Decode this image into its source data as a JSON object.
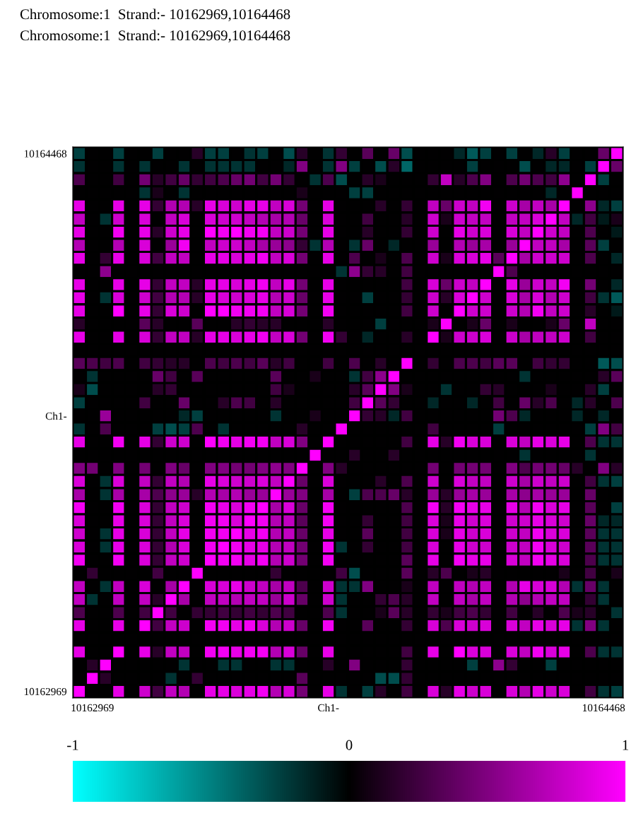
{
  "chart_data": {
    "type": "heatmap",
    "title": "Chromosome:1  Strand:- 10162969,10164468",
    "subtitle": "Chromosome:1  Strand:- 10162969,10164468",
    "categories": [
      null,
      "10162969",
      null,
      null,
      null,
      null,
      null,
      null,
      null,
      null,
      null,
      null,
      null,
      null,
      null,
      null,
      null,
      null,
      null,
      "Ch1-",
      null,
      null,
      null,
      null,
      null,
      null,
      null,
      null,
      null,
      null,
      null,
      null,
      null,
      null,
      null,
      null,
      null,
      null,
      null,
      null,
      "10164468",
      null
    ],
    "y_categories": [
      "10164468",
      null,
      null,
      null,
      null,
      null,
      null,
      null,
      null,
      null,
      null,
      null,
      null,
      null,
      null,
      null,
      null,
      null,
      null,
      null,
      "Ch1-",
      null,
      null,
      null,
      null,
      null,
      null,
      null,
      null,
      null,
      null,
      null,
      null,
      null,
      null,
      null,
      null,
      null,
      null,
      null,
      null,
      "10162969"
    ],
    "cells": [
      [
        -0.25,
        0,
        0,
        -0.25,
        0,
        0,
        -0.25,
        0,
        0,
        0.15,
        -0.25,
        -0.25,
        0,
        -0.2,
        -0.25,
        0,
        -0.3,
        0.15,
        0,
        -0.2,
        0.2,
        0,
        0.35,
        0,
        0.4,
        -0.3,
        0,
        0,
        0,
        -0.15,
        -0.35,
        -0.25,
        0,
        -0.25,
        0,
        -0.15,
        0.15,
        -0.25,
        0,
        0,
        0.4,
        1
      ],
      [
        -0.2,
        0,
        0,
        -0.2,
        0,
        -0.2,
        0,
        0,
        -0.2,
        0,
        -0.2,
        -0.2,
        -0.2,
        -0.2,
        0,
        0,
        -0.15,
        0.5,
        0,
        -0.2,
        0.5,
        -0.25,
        0,
        -0.3,
        0.15,
        -0.4,
        0,
        0,
        0,
        0,
        -0.25,
        0,
        0,
        0,
        -0.3,
        0,
        -0.15,
        -0.15,
        0,
        -0.25,
        1,
        0.4
      ],
      [
        0.3,
        0,
        0,
        0.25,
        0,
        0.45,
        0.15,
        0.25,
        0.4,
        0.2,
        0.25,
        0.3,
        0.4,
        0.45,
        0.25,
        0.45,
        0.2,
        0,
        -0.2,
        0.3,
        -0.3,
        0,
        0.15,
        0.1,
        0,
        0,
        0,
        0.2,
        0.75,
        0.15,
        0.3,
        0.5,
        0,
        0.3,
        0.45,
        0.3,
        0.25,
        0.55,
        0,
        1,
        -0.25,
        0
      ],
      [
        0,
        0,
        0,
        0,
        0,
        -0.2,
        0.1,
        0,
        -0.2,
        0,
        0,
        0,
        0,
        0,
        0,
        0,
        0,
        0.1,
        0,
        0,
        0,
        -0.25,
        -0.25,
        0,
        0,
        0,
        0,
        0,
        0,
        0,
        0,
        0,
        0,
        0,
        0,
        0,
        -0.15,
        0,
        1,
        0,
        0,
        0
      ],
      [
        0.9,
        0,
        0,
        0.9,
        0,
        0.9,
        0.2,
        0.7,
        0.7,
        0.15,
        0.9,
        0.85,
        0.8,
        0.9,
        0.9,
        0.75,
        0.85,
        0.45,
        0,
        0.9,
        0,
        0,
        0,
        0.15,
        0,
        0.2,
        0,
        0.75,
        0.4,
        0.8,
        0.75,
        0.95,
        0,
        0.8,
        0.65,
        0.75,
        0.65,
        1,
        0,
        0.55,
        -0.15,
        -0.25
      ],
      [
        0.75,
        0,
        -0.2,
        0.8,
        0,
        0.85,
        0,
        0.75,
        0.85,
        0,
        0.85,
        0.8,
        0.8,
        0.75,
        0.7,
        0.65,
        0.7,
        0.4,
        0,
        0.85,
        0,
        0,
        0.25,
        0,
        0,
        0.15,
        0,
        0.8,
        0.1,
        0.8,
        0.75,
        0.75,
        0,
        0.75,
        0.75,
        0.85,
        1,
        0.75,
        -0.15,
        0.25,
        -0.1,
        0.1
      ],
      [
        0.9,
        0,
        0,
        0.95,
        0,
        0.9,
        0.15,
        0.8,
        0.9,
        0,
        1,
        0.95,
        1,
        0.95,
        0.95,
        0.75,
        0.8,
        0.45,
        0,
        0.9,
        0,
        0,
        0.15,
        0,
        0,
        0.2,
        0,
        0.8,
        0,
        0.9,
        0.8,
        0.85,
        0,
        0.85,
        0.75,
        1,
        0.8,
        0.75,
        0,
        0.3,
        0,
        -0.1
      ],
      [
        0.7,
        0,
        0,
        0.7,
        0,
        0.85,
        0,
        0.6,
        0.95,
        0,
        0.75,
        0.8,
        0.8,
        0.75,
        0.65,
        0.6,
        0.55,
        0.2,
        -0.2,
        0.7,
        0,
        -0.2,
        0.4,
        0,
        -0.15,
        0,
        0,
        0.6,
        0,
        0.7,
        0.6,
        0.65,
        0,
        0.6,
        1,
        0.75,
        0.75,
        0.65,
        0,
        0.35,
        -0.25,
        0
      ],
      [
        0.9,
        0,
        0.2,
        0.9,
        0,
        0.85,
        0.25,
        0.75,
        0.75,
        0,
        0.9,
        0.9,
        0.85,
        0.9,
        0.95,
        0.75,
        0.85,
        0.45,
        0,
        0.9,
        0,
        0.3,
        0,
        0.1,
        0,
        0.3,
        0,
        0.8,
        0.1,
        0.85,
        0.85,
        0.9,
        0.35,
        1,
        0.65,
        0.8,
        0.8,
        0.8,
        0,
        0.3,
        0,
        -0.15
      ],
      [
        0,
        0,
        0.55,
        0,
        0,
        0,
        0,
        0,
        0,
        0,
        0,
        0,
        0,
        0,
        0,
        0,
        0,
        0,
        0,
        0,
        -0.2,
        0.55,
        0.2,
        0.15,
        0,
        0.25,
        0,
        0,
        0,
        0,
        0,
        0,
        1,
        0.3,
        0,
        0,
        0,
        0,
        0,
        0,
        0,
        0
      ],
      [
        0.9,
        0,
        0,
        0.9,
        0,
        0.9,
        0.2,
        0.75,
        0.75,
        0.15,
        0.9,
        0.9,
        0.85,
        0.9,
        0.95,
        0.75,
        0.9,
        0.45,
        0,
        0.9,
        0,
        0,
        0,
        0,
        0,
        0.25,
        0,
        0.85,
        0.4,
        0.8,
        0.75,
        1,
        0,
        0.9,
        0.6,
        0.8,
        0.75,
        0.95,
        0,
        0.45,
        0,
        -0.15
      ],
      [
        0.9,
        0,
        -0.2,
        0.85,
        0,
        0.8,
        0.25,
        0.7,
        0.7,
        0.15,
        0.9,
        0.85,
        0.8,
        0.85,
        0.9,
        0.7,
        0.8,
        0.4,
        0,
        0.9,
        0,
        0,
        -0.25,
        0,
        0,
        0.2,
        0,
        0.8,
        0.15,
        0.85,
        1,
        0.8,
        0,
        0.85,
        0.65,
        0.85,
        0.7,
        0.8,
        0,
        0.25,
        -0.2,
        -0.35
      ],
      [
        0.9,
        0,
        0,
        1,
        0,
        0.9,
        0.2,
        0.85,
        0.8,
        0,
        1,
        1,
        0.95,
        0.95,
        0.95,
        0.75,
        0.85,
        0.45,
        0,
        0.95,
        0,
        0,
        0,
        0,
        0,
        0.25,
        0,
        0.8,
        0,
        1,
        0.8,
        0.8,
        0,
        0.8,
        0.7,
        0.95,
        0.75,
        0.8,
        0,
        0.15,
        0,
        -0.1
      ],
      [
        0.15,
        0,
        0,
        0,
        0,
        0.35,
        0.15,
        0,
        0,
        0.35,
        0,
        0,
        0.15,
        0.2,
        0.15,
        0.15,
        0,
        0,
        0,
        0.15,
        0,
        0,
        0,
        -0.25,
        0,
        0,
        0,
        0.1,
        1,
        0,
        0.1,
        0.4,
        0,
        0.1,
        0,
        0,
        0.1,
        0.4,
        0,
        0.75,
        0,
        0
      ],
      [
        0.9,
        0,
        0,
        0.9,
        0,
        0.85,
        0.2,
        0.75,
        0.75,
        0.15,
        0.9,
        0.9,
        0.85,
        0.9,
        0.95,
        0.75,
        0.85,
        0.45,
        0,
        0.95,
        0.2,
        0,
        -0.15,
        0,
        0,
        0.15,
        0,
        1,
        0.1,
        0.8,
        0.8,
        0.85,
        0,
        0.8,
        0.65,
        0.75,
        0.75,
        0.8,
        0,
        0.25,
        0,
        0
      ],
      [
        0,
        0,
        0,
        0,
        0,
        0,
        0,
        0,
        0,
        0,
        0,
        0,
        0,
        0,
        0,
        0,
        0,
        0,
        0,
        0,
        0,
        0,
        0,
        0,
        0,
        0,
        0,
        0,
        0,
        0,
        0,
        0,
        0,
        0,
        0,
        0,
        0,
        0,
        0,
        0,
        0,
        0
      ],
      [
        0.35,
        0.3,
        0.25,
        0.3,
        0,
        0.25,
        0.2,
        0.15,
        0.15,
        0,
        0.3,
        0.25,
        0.3,
        0.25,
        0.35,
        0.15,
        0.25,
        0,
        0,
        0.25,
        0,
        0.3,
        0,
        0.15,
        0,
        1,
        0,
        0.2,
        0,
        0.3,
        0.3,
        0.25,
        0.35,
        0.35,
        0,
        0.25,
        0.2,
        0.2,
        0,
        0,
        -0.35,
        -0.3
      ],
      [
        0,
        -0.2,
        0,
        0,
        0,
        0,
        0.4,
        0.25,
        0,
        0.35,
        0,
        0,
        0,
        0,
        0,
        0.35,
        0,
        0,
        0.1,
        0,
        0,
        -0.2,
        0.25,
        0.55,
        1,
        0,
        0,
        0,
        0,
        0,
        0,
        0,
        0,
        0,
        -0.2,
        0,
        0,
        0,
        0,
        0,
        0.15,
        0.35
      ],
      [
        0.1,
        -0.3,
        0,
        0,
        0,
        0,
        0.15,
        0.2,
        0,
        0,
        0,
        0,
        0,
        0,
        0,
        0.25,
        0.1,
        0,
        0,
        0,
        0,
        0.15,
        0.35,
        1,
        0.5,
        0.1,
        0,
        0,
        -0.2,
        0,
        0,
        0.2,
        0.15,
        0,
        0,
        0,
        0.1,
        0,
        0,
        0.15,
        -0.25,
        0
      ],
      [
        -0.25,
        0,
        0,
        0,
        0,
        0.25,
        0,
        0,
        0.4,
        0,
        0,
        0.15,
        0.3,
        0.25,
        0,
        0.15,
        0,
        0,
        0,
        0,
        0,
        0.25,
        1,
        0.35,
        0.2,
        0,
        0,
        -0.15,
        0,
        0,
        -0.15,
        0,
        0.25,
        0,
        0.4,
        0.15,
        0.3,
        0,
        -0.15,
        0.15,
        0,
        0.3
      ],
      [
        0,
        0,
        0.6,
        0,
        0,
        0,
        0,
        0,
        -0.15,
        -0.25,
        0,
        0,
        0,
        0,
        0,
        -0.2,
        0,
        0,
        0.1,
        0,
        0,
        1,
        0.2,
        0.15,
        -0.15,
        0.25,
        0,
        0,
        0,
        0,
        0,
        0,
        0.45,
        0.3,
        -0.15,
        0,
        0,
        0,
        -0.15,
        0,
        -0.15,
        0
      ],
      [
        -0.2,
        0,
        0.3,
        0,
        0,
        0,
        -0.25,
        -0.3,
        -0.25,
        0.3,
        0,
        -0.2,
        0,
        0,
        0,
        0,
        0,
        0.15,
        0,
        0,
        1,
        0,
        0,
        0,
        0,
        0,
        0,
        0.25,
        0,
        0,
        0,
        0,
        -0.25,
        0,
        0,
        0,
        0,
        0,
        0,
        -0.25,
        0.5,
        0.25
      ],
      [
        0.9,
        0,
        0,
        0.95,
        0,
        0.9,
        0.2,
        0.8,
        0.8,
        0,
        1,
        0.95,
        0.9,
        0.95,
        0.95,
        0.75,
        0.85,
        0.5,
        0,
        1,
        0,
        0,
        0,
        0,
        0,
        0.25,
        0,
        0.9,
        0.15,
        0.95,
        0.85,
        0.85,
        0,
        0.85,
        0.75,
        0.9,
        0.85,
        0.9,
        0,
        0.3,
        -0.2,
        -0.2
      ],
      [
        0,
        0,
        0,
        0,
        0,
        0,
        0,
        0,
        0,
        0,
        0,
        0,
        0,
        0,
        0,
        0,
        0,
        0,
        1,
        0,
        0,
        0.15,
        0,
        0,
        0.15,
        0,
        0,
        0,
        0,
        0,
        0,
        0,
        0,
        0,
        -0.2,
        0,
        0,
        0,
        0,
        -0.2,
        0,
        0
      ],
      [
        0.5,
        0.45,
        0,
        0.5,
        0,
        0.45,
        0,
        0.5,
        0.4,
        0,
        0.5,
        0.5,
        0.45,
        0.45,
        0.5,
        0.55,
        0.5,
        1,
        0,
        0.5,
        0.15,
        0,
        0,
        0,
        0,
        0,
        0,
        0.45,
        0,
        0.45,
        0.45,
        0.45,
        0,
        0.5,
        0.3,
        0.45,
        0.45,
        0.4,
        0.15,
        0,
        0.5,
        0.15
      ],
      [
        0.85,
        0,
        -0.2,
        0.85,
        0,
        0.75,
        0.2,
        0.75,
        0.7,
        0,
        0.9,
        0.85,
        0.8,
        0.8,
        0.85,
        0.75,
        1,
        0.4,
        0,
        0.85,
        0,
        0,
        0,
        0.15,
        0,
        0.3,
        0,
        0.8,
        0,
        0.85,
        0.75,
        0.75,
        0,
        0.8,
        0.65,
        0.8,
        0.75,
        0.8,
        0,
        0.25,
        -0.2,
        -0.25
      ],
      [
        0.65,
        0,
        -0.2,
        0.65,
        0,
        0.65,
        0.3,
        0.55,
        0.6,
        0.15,
        0.7,
        0.65,
        0.7,
        0.6,
        0.6,
        1,
        0.6,
        0.5,
        0,
        0.65,
        0,
        -0.25,
        0.3,
        0.3,
        0.4,
        0.15,
        0,
        0.6,
        0.15,
        0.6,
        0.65,
        0.6,
        0,
        0.65,
        0.55,
        0.65,
        0.6,
        0.6,
        0,
        0.4,
        0,
        0
      ],
      [
        0.95,
        0,
        0,
        0.95,
        0,
        0.85,
        0.2,
        0.75,
        0.8,
        0,
        0.95,
        0.9,
        0.85,
        0.95,
        1,
        0.65,
        0.85,
        0.4,
        0,
        0.95,
        0,
        0,
        0,
        0,
        0,
        0.3,
        0,
        0.95,
        0.15,
        0.95,
        0.9,
        0.9,
        0,
        0.9,
        0.7,
        0.95,
        0.85,
        0.9,
        0,
        0.35,
        0,
        -0.25
      ],
      [
        0.85,
        0,
        0,
        0.9,
        0,
        0.85,
        0.2,
        0.75,
        0.85,
        0,
        0.95,
        0.95,
        0.85,
        1,
        0.95,
        0.7,
        0.75,
        0.35,
        0,
        0.95,
        0,
        0,
        0.2,
        0,
        0,
        0.25,
        0,
        0.85,
        0.1,
        0.9,
        0.8,
        0.85,
        0,
        0.8,
        0.8,
        0.9,
        0.85,
        0.8,
        0,
        0.4,
        -0.15,
        -0.15
      ],
      [
        0.8,
        0,
        -0.2,
        0.9,
        0,
        0.85,
        0.2,
        0.75,
        0.9,
        0,
        0.95,
        0.95,
        1,
        0.9,
        0.95,
        0.7,
        0.75,
        0.4,
        0,
        0.9,
        0,
        0,
        0.35,
        0,
        0,
        0.25,
        0,
        0.85,
        0.1,
        0.9,
        0.8,
        0.85,
        0,
        0.8,
        0.75,
        0.95,
        0.85,
        0.85,
        0,
        0.35,
        -0.2,
        -0.2
      ],
      [
        0.85,
        0,
        -0.2,
        0.9,
        0,
        0.85,
        0.2,
        0.7,
        0.85,
        0,
        0.95,
        1,
        0.95,
        0.9,
        0.9,
        0.7,
        0.75,
        0.45,
        0,
        0.95,
        -0.2,
        0,
        0.2,
        0,
        0,
        0.25,
        0,
        0.85,
        0,
        0.9,
        0.8,
        0.8,
        0,
        0.8,
        0.75,
        0.95,
        0.85,
        0.8,
        0,
        0.35,
        -0.2,
        -0.2
      ],
      [
        0.95,
        0,
        0,
        0.95,
        0,
        0.85,
        0.2,
        0.75,
        0.8,
        0,
        1,
        0.95,
        0.95,
        0.9,
        0.95,
        0.7,
        0.8,
        0.45,
        0,
        0.95,
        0,
        0,
        0,
        0,
        0,
        0.35,
        0,
        0.9,
        0,
        0.95,
        0.9,
        0.9,
        0,
        0.85,
        0.75,
        0.95,
        0.9,
        0.85,
        0,
        0.3,
        -0.2,
        -0.2
      ],
      [
        0,
        0.2,
        0,
        0,
        0,
        0,
        0.25,
        0,
        0,
        1,
        0,
        0,
        0,
        0,
        0,
        0.2,
        0,
        0,
        0,
        0,
        0.25,
        -0.3,
        0,
        0,
        0,
        0.35,
        0,
        0.15,
        0.3,
        0,
        0.1,
        0.15,
        0,
        0,
        0,
        0,
        0,
        0.1,
        0,
        0.25,
        0,
        0.1
      ],
      [
        0.75,
        0,
        -0.2,
        0.75,
        0,
        0.85,
        0,
        0.65,
        1,
        0,
        0.85,
        0.85,
        0.9,
        0.8,
        0.75,
        0.65,
        0.75,
        0.3,
        0,
        0.8,
        -0.2,
        -0.2,
        0.5,
        0,
        0,
        0.1,
        0,
        0.75,
        0,
        0.75,
        0.7,
        0.75,
        0,
        0.7,
        0.9,
        0.85,
        0.85,
        0.7,
        -0.2,
        0.4,
        -0.2,
        0
      ],
      [
        0.75,
        -0.2,
        0,
        0.75,
        0,
        0.75,
        0.15,
        1,
        0.65,
        0,
        0.75,
        0.75,
        0.7,
        0.75,
        0.75,
        0.6,
        0.8,
        0.4,
        0,
        0.8,
        -0.2,
        0,
        0,
        0.2,
        0.3,
        0.15,
        0,
        0.75,
        0,
        0.75,
        0.65,
        0.75,
        0,
        0.7,
        0.55,
        0.7,
        0.75,
        0.75,
        0,
        0.2,
        -0.2,
        0
      ],
      [
        0.3,
        0,
        0,
        0.3,
        0,
        0.25,
        1,
        0.25,
        0,
        0.2,
        0.2,
        0.25,
        0.2,
        0.25,
        0.2,
        0.3,
        0.25,
        0,
        0,
        0.3,
        -0.2,
        0,
        0,
        0.1,
        0.35,
        0.15,
        0,
        0.2,
        0.1,
        0.25,
        0.3,
        0.2,
        0,
        0.25,
        0,
        0.15,
        0,
        0.3,
        0.1,
        0.15,
        0,
        -0.2
      ],
      [
        0.9,
        0,
        0,
        0.9,
        0,
        1,
        0.25,
        0.75,
        0.8,
        0,
        0.95,
        0.95,
        0.9,
        0.95,
        0.85,
        0.7,
        0.8,
        0.4,
        0,
        0.95,
        0,
        0,
        0.35,
        0,
        0,
        0.2,
        0,
        0.85,
        0.3,
        0.85,
        0.8,
        0.85,
        0,
        0.85,
        0.75,
        0.9,
        0.85,
        0.9,
        -0.2,
        0.5,
        -0.2,
        0
      ],
      [
        0,
        0,
        0,
        0,
        0,
        0,
        0,
        0,
        0,
        0,
        0,
        0,
        0,
        0,
        0,
        0,
        0,
        0,
        0,
        0,
        0,
        0,
        0,
        0,
        0,
        0,
        0,
        0,
        0,
        0,
        0,
        0,
        0,
        0,
        0,
        0,
        0,
        0,
        0,
        0,
        0,
        0
      ],
      [
        0.9,
        0,
        0,
        1,
        0,
        0.9,
        0.15,
        0.75,
        0.75,
        0,
        0.95,
        0.95,
        0.9,
        0.95,
        0.95,
        0.7,
        0.85,
        0.4,
        0,
        0.9,
        0,
        0,
        0,
        0,
        0,
        0.25,
        0,
        0.9,
        0,
        1,
        0.85,
        0.85,
        0,
        0.85,
        0.75,
        0.95,
        0.85,
        0.9,
        0,
        0.3,
        -0.2,
        -0.2
      ],
      [
        0,
        0.15,
        1,
        0,
        0,
        0,
        0,
        0,
        -0.2,
        0,
        0,
        -0.2,
        -0.2,
        0,
        0,
        -0.2,
        -0.2,
        0,
        0,
        0.15,
        0,
        0.5,
        0,
        0,
        0,
        0.2,
        0,
        0,
        0,
        0,
        -0.25,
        0,
        0.55,
        0.2,
        0,
        0,
        -0.25,
        0,
        0,
        0,
        0,
        0
      ],
      [
        0,
        1,
        0.15,
        0,
        0,
        0,
        0,
        -0.2,
        0,
        0.2,
        0,
        0,
        0,
        0,
        0,
        0,
        0,
        0.35,
        0,
        0,
        0,
        0,
        0,
        -0.3,
        -0.3,
        0.2,
        0,
        0,
        0,
        0,
        0,
        0,
        0,
        0,
        0,
        0,
        0,
        0,
        0,
        0,
        0,
        0
      ],
      [
        1,
        0,
        0,
        0.9,
        0,
        0.8,
        0.25,
        0.75,
        0.7,
        0,
        0.9,
        0.9,
        0.85,
        0.9,
        0.95,
        0.7,
        0.85,
        0.45,
        0,
        0.9,
        -0.2,
        0,
        -0.25,
        0.15,
        0,
        0.25,
        0,
        0.85,
        0.15,
        0.9,
        0.8,
        0.85,
        0,
        0.85,
        0.7,
        0.9,
        0.8,
        0.85,
        0,
        0.25,
        -0.2,
        -0.25
      ]
    ],
    "clim": [
      -1,
      1
    ],
    "cticks": [
      -1,
      0,
      1
    ]
  }
}
